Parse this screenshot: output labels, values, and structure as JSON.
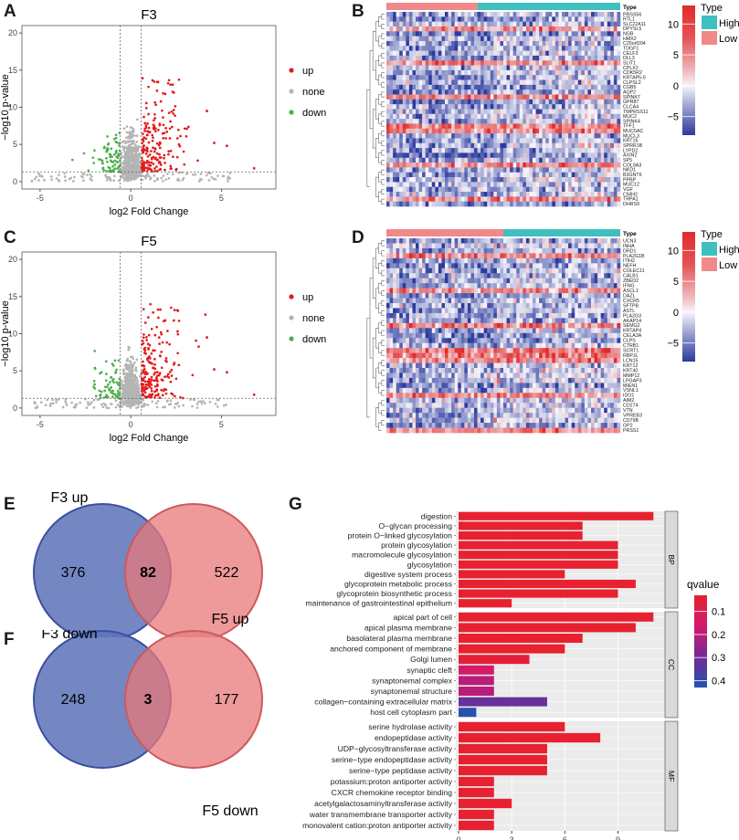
{
  "panel_labels": {
    "A": "A",
    "B": "B",
    "C": "C",
    "D": "D",
    "E": "E",
    "F": "F",
    "G": "G"
  },
  "colors": {
    "up": "#e41a1c",
    "none": "#b4b4b4",
    "down": "#4daf4a",
    "venn_left": "#5c72b8",
    "venn_right": "#e8787a",
    "bar_high_q": "#e7212f",
    "bar_low_q": "#2255b0",
    "heat_high": "#e12a2a",
    "heat_low": "#2b3a9e",
    "type_high": "#3fbfbf",
    "type_low": "#f0898a"
  },
  "chart_data": [
    {
      "id": "A",
      "type": "scatter",
      "title": "F3",
      "xlabel": "log2 Fold Change",
      "ylabel": "−log10 p-value",
      "xlim": [
        -6,
        8
      ],
      "ylim": [
        -1,
        21
      ],
      "xticks": [
        "-5",
        "0",
        "5"
      ],
      "yticks": [
        "0",
        "5",
        "10",
        "15",
        "20"
      ],
      "vlines": [
        -0.58,
        0.58
      ],
      "hline": 1.3,
      "legend": [
        {
          "key": "up",
          "label": "up"
        },
        {
          "key": "none",
          "label": "none"
        },
        {
          "key": "down",
          "label": "down"
        }
      ]
    },
    {
      "id": "C",
      "type": "scatter",
      "title": "F5",
      "xlabel": "log2 Fold Change",
      "ylabel": "−log10 p-value",
      "xlim": [
        -6,
        8
      ],
      "ylim": [
        -1,
        21
      ],
      "xticks": [
        "-5",
        "0",
        "5"
      ],
      "yticks": [
        "0",
        "5",
        "10",
        "15",
        "20"
      ],
      "vlines": [
        -0.58,
        0.58
      ],
      "hline": 1.3,
      "legend": [
        {
          "key": "up",
          "label": "up"
        },
        {
          "key": "none",
          "label": "none"
        },
        {
          "key": "down",
          "label": "down"
        }
      ]
    },
    {
      "id": "B",
      "type": "heatmap",
      "annotation_label": "Type",
      "groups": [
        {
          "label": "Low",
          "fraction": 0.39
        },
        {
          "label": "High",
          "fraction": 0.61
        }
      ],
      "legend_title": "Type",
      "legend_items": [
        "High",
        "Low"
      ],
      "colorbar_ticks": [
        "10",
        "5",
        "0",
        "−5"
      ],
      "colorbar_range": [
        -8,
        13
      ],
      "rows": [
        "PRSS56",
        "RTL1",
        "SLC22A11",
        "DPYSL5",
        "NGB",
        "HMX2",
        "C20orf204",
        "TDGF1",
        "CELF3",
        "DLL3",
        "SLIT1",
        "CPLX2",
        "CDK5R2",
        "KRTAP5-5",
        "CLPSL2",
        "CGB5",
        "AQP2",
        "SPINK7",
        "GPR87",
        "CLCA4",
        "TMPRSS11",
        "MUC2",
        "SPINK4",
        "TFF1",
        "MUC5AC",
        "MUCL3",
        "KRT16",
        "SPRR1B",
        "LYPD2",
        "AXIN2",
        "SP5",
        "COL9A3",
        "NKD1",
        "B3GNT6",
        "PPBP",
        "MUC12",
        "VGF",
        "CNIH2",
        "TRPA1",
        "DHRS9"
      ]
    },
    {
      "id": "D",
      "type": "heatmap",
      "annotation_label": "Type",
      "groups": [
        {
          "label": "Low",
          "fraction": 0.5
        },
        {
          "label": "High",
          "fraction": 0.5
        }
      ],
      "legend_title": "Type",
      "legend_items": [
        "High",
        "Low"
      ],
      "colorbar_ticks": [
        "10",
        "5",
        "0",
        "−5"
      ],
      "colorbar_range": [
        -8,
        13
      ],
      "rows": [
        "UCN3",
        "INHA",
        "DRD1",
        "PLA2G1B",
        "ITIH2",
        "NEFH",
        "COLEC11",
        "CALB1",
        "ZBED2",
        "IFNG",
        "ASCL1",
        "DAZL",
        "CXCR5",
        "SFTPB",
        "ASTL",
        "PLA2G3",
        "AKAP14",
        "SEMG2",
        "KRTAP4",
        "CELA3A",
        "CLPS",
        "CTRB1",
        "SCRT1",
        "RBPJL",
        "LCN15",
        "KRT12",
        "KRT40",
        "MMP12",
        "LPGAP3",
        "MIEN1",
        "VSNL1",
        "IDO1",
        "AIM2",
        "CD274",
        "VTN",
        "VPREB3",
        "CD79B",
        "GP2",
        "PRSS1"
      ]
    },
    {
      "id": "E",
      "type": "venn",
      "left": {
        "label": "F3 up",
        "only": "376"
      },
      "right": {
        "label": "F5 up",
        "only": "522"
      },
      "overlap": "82"
    },
    {
      "id": "F",
      "type": "venn",
      "left": {
        "label": "F3 down",
        "only": "248"
      },
      "right": {
        "label": "F5 down",
        "only": "177"
      },
      "overlap": "3"
    },
    {
      "id": "G",
      "type": "bar",
      "orientation": "horizontal",
      "xticks": [
        0,
        3,
        6,
        9
      ],
      "xlim": [
        0,
        11.5
      ],
      "legend_title": "qvalue",
      "legend_ticks": [
        "0.1",
        "0.2",
        "0.3",
        "0.4"
      ],
      "q_range": [
        0.03,
        0.43
      ],
      "facets": [
        {
          "label": "BP",
          "bars": [
            {
              "term": "digestion",
              "value": 11,
              "q": 0.03
            },
            {
              "term": "O−glycan processing",
              "value": 7,
              "q": 0.03
            },
            {
              "term": "protein O−linked glycosylation",
              "value": 7,
              "q": 0.03
            },
            {
              "term": "protein glycosylation",
              "value": 9,
              "q": 0.03
            },
            {
              "term": "macromolecule glycosylation",
              "value": 9,
              "q": 0.03
            },
            {
              "term": "glycosylation",
              "value": 9,
              "q": 0.03
            },
            {
              "term": "digestive system process",
              "value": 6,
              "q": 0.03
            },
            {
              "term": "glycoprotein metabolic process",
              "value": 10,
              "q": 0.03
            },
            {
              "term": "glycoprotein biosynthetic process",
              "value": 9,
              "q": 0.03
            },
            {
              "term": "maintenance of gastrointestinal epithelium",
              "value": 3,
              "q": 0.03
            }
          ]
        },
        {
          "label": "CC",
          "bars": [
            {
              "term": "apical part of cell",
              "value": 11,
              "q": 0.03
            },
            {
              "term": "apical plasma membrane",
              "value": 10,
              "q": 0.03
            },
            {
              "term": "basolateral plasma membrane",
              "value": 7,
              "q": 0.03
            },
            {
              "term": "anchored component of membrane",
              "value": 6,
              "q": 0.03
            },
            {
              "term": "Golgi lumen",
              "value": 4,
              "q": 0.05
            },
            {
              "term": "synaptic cleft",
              "value": 2,
              "q": 0.15
            },
            {
              "term": "synaptonemal complex",
              "value": 2,
              "q": 0.2
            },
            {
              "term": "synaptonemal structure",
              "value": 2,
              "q": 0.2
            },
            {
              "term": "collagen−containing extracellular matrix",
              "value": 5,
              "q": 0.32
            },
            {
              "term": "host cell cytoplasm part",
              "value": 1,
              "q": 0.42
            }
          ]
        },
        {
          "label": "MF",
          "bars": [
            {
              "term": "serine hydrolase activity",
              "value": 6,
              "q": 0.03
            },
            {
              "term": "endopeptidase activity",
              "value": 8,
              "q": 0.03
            },
            {
              "term": "UDP−glycosyltransferase activity",
              "value": 5,
              "q": 0.03
            },
            {
              "term": "serine−type endopeptidase activity",
              "value": 5,
              "q": 0.03
            },
            {
              "term": "serine−type peptidase activity",
              "value": 5,
              "q": 0.03
            },
            {
              "term": "potassium:proton antiporter activity",
              "value": 2,
              "q": 0.03
            },
            {
              "term": "CXCR chemokine receptor binding",
              "value": 2,
              "q": 0.03
            },
            {
              "term": "acetylgalactosaminyltransferase activity",
              "value": 3,
              "q": 0.03
            },
            {
              "term": "water transmembrane transporter activity",
              "value": 2,
              "q": 0.03
            },
            {
              "term": "monovalent cation:proton antiporter activity",
              "value": 2,
              "q": 0.03
            }
          ]
        }
      ]
    }
  ]
}
